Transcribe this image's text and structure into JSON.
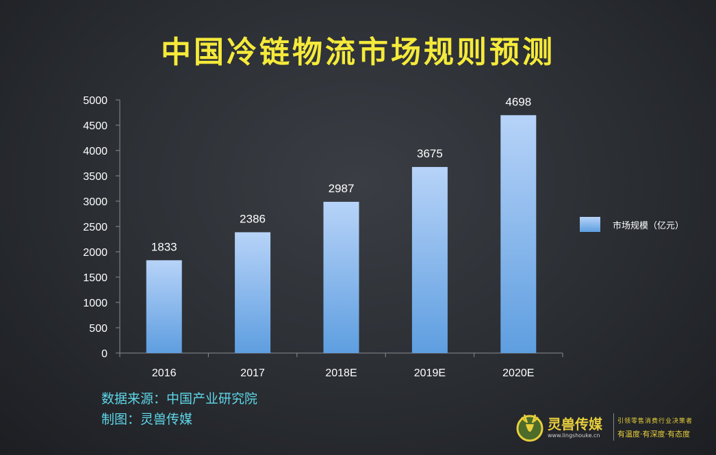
{
  "page_title": "中国冷链物流市场规则预测",
  "chart_data": {
    "type": "bar",
    "title": "中国冷链物流市场规则预测",
    "categories": [
      "2016",
      "2017",
      "2018E",
      "2019E",
      "2020E"
    ],
    "series": [
      {
        "name": "市场规模（亿元）",
        "values": [
          1833,
          2386,
          2987,
          3675,
          4698
        ]
      }
    ],
    "data_labels": [
      "1833",
      "2386",
      "2987",
      "3675",
      "4698"
    ],
    "ylim": [
      0,
      5000
    ],
    "yticks": [
      0,
      500,
      1000,
      1500,
      2000,
      2500,
      3000,
      3500,
      4000,
      4500,
      5000
    ],
    "ytick_labels": [
      "0",
      "500",
      "1000",
      "1500",
      "2000",
      "2500",
      "3000",
      "3500",
      "4000",
      "4500",
      "5000"
    ],
    "legend_position": "right",
    "grid": false,
    "bar_color_top": "#b7d3f8",
    "bar_color_bottom": "#5e9ee0"
  },
  "source": {
    "line1": "数据来源：中国产业研究院",
    "line2": "制图：灵兽传媒"
  },
  "brand": {
    "name": "灵兽传媒",
    "url": "www.lingshouke.cn",
    "slogan1": "引领零售消费行业决策者",
    "slogan2": "有温度·有深度·有态度"
  },
  "colors": {
    "title": "#f5ea3a",
    "source": "#5fd6e8",
    "brand": "#e8cf3c"
  }
}
